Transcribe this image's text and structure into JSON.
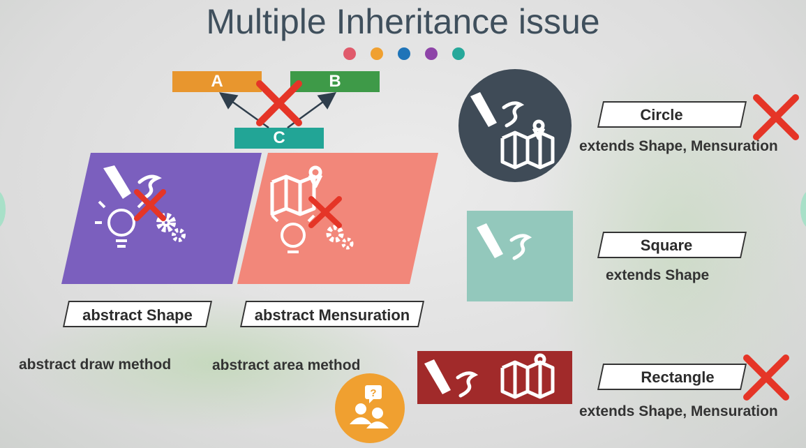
{
  "title": "Multiple Inheritance issue",
  "dots": [
    "#e05a6b",
    "#f0a030",
    "#1f74b8",
    "#8e44a8",
    "#26a89a"
  ],
  "hierarchy": {
    "a": "A",
    "b": "B",
    "c": "C"
  },
  "abstract_classes": [
    {
      "label": "abstract Shape",
      "method": "abstract draw method",
      "color": "#7b5fbe"
    },
    {
      "label": "abstract Mensuration",
      "method": "abstract area method",
      "color": "#f2877a"
    }
  ],
  "concrete_classes": [
    {
      "name": "Circle",
      "extends": "extends Shape, Mensuration"
    },
    {
      "name": "Square",
      "extends": "extends Shape"
    },
    {
      "name": "Rectangle",
      "extends": "extends Shape, Mensuration"
    }
  ],
  "colors": {
    "a_box": "#e8962e",
    "b_box": "#3e9a48",
    "c_box": "#22a596",
    "cross": "#e53527",
    "circle_icon": "#3f4b57",
    "square_icon": "#93c8bc",
    "rect_icon": "#a12a2a",
    "question_badge": "#f0a030"
  },
  "icons": [
    "pen-icon",
    "map-pin-icon",
    "bulb-icon",
    "gears-icon",
    "people-question-icon"
  ]
}
